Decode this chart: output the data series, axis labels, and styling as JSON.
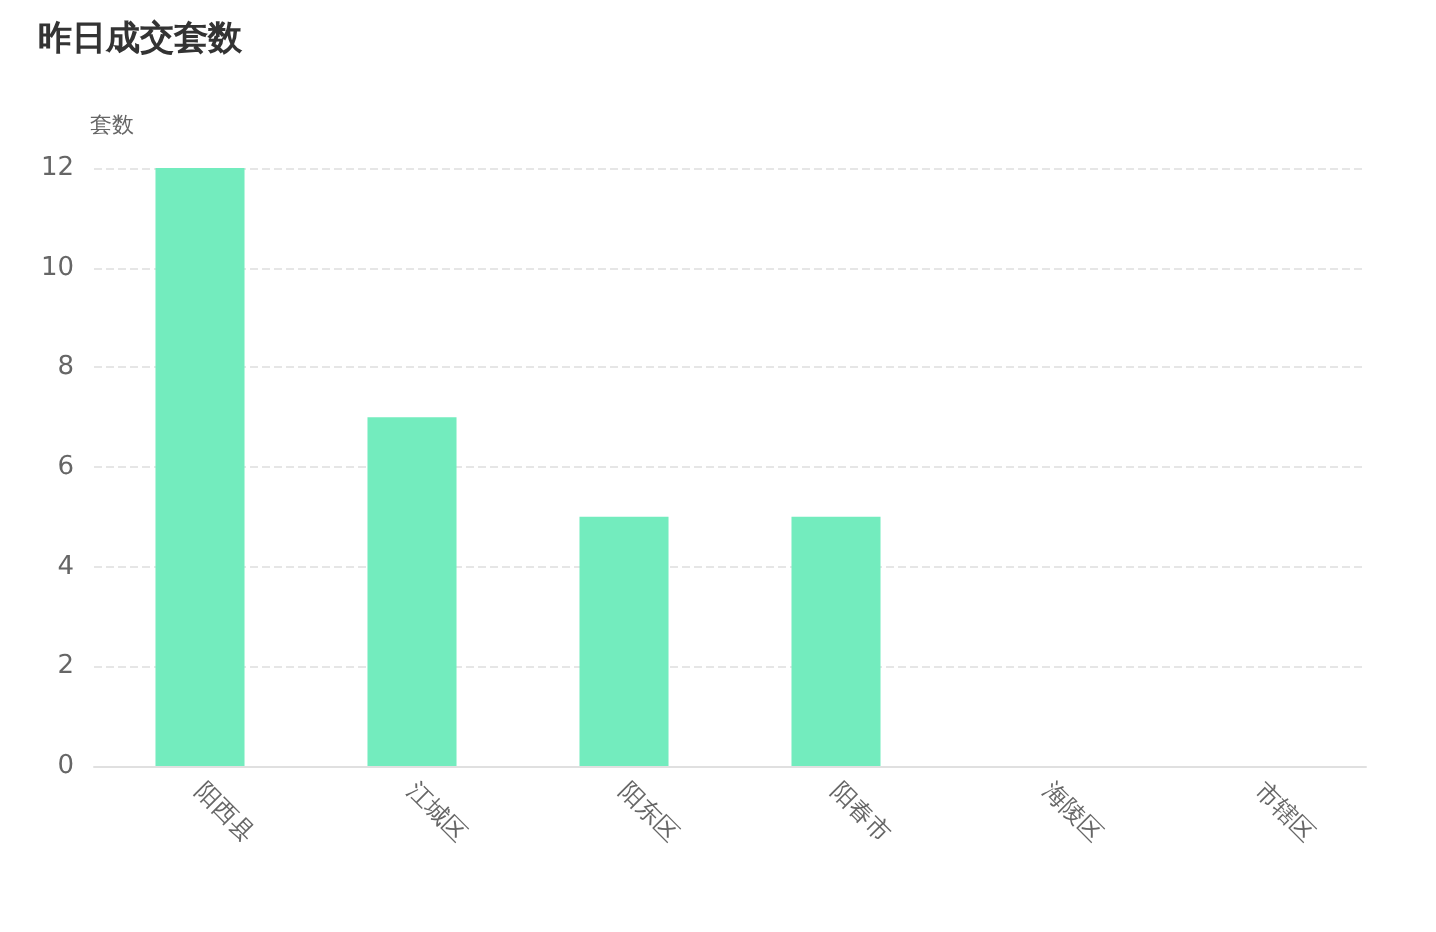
{
  "chart_data": {
    "type": "bar",
    "title": "昨日成交套数",
    "ylabel": "套数",
    "categories": [
      "阳西县",
      "江城区",
      "阳东区",
      "阳春市",
      "海陵区",
      "市辖区"
    ],
    "values": [
      12,
      7,
      5,
      5,
      0,
      0
    ],
    "color": "#73ecbe",
    "ylim": [
      0,
      12
    ],
    "yticks": [
      0,
      2,
      4,
      6,
      8,
      10,
      12
    ],
    "grid": "y"
  }
}
